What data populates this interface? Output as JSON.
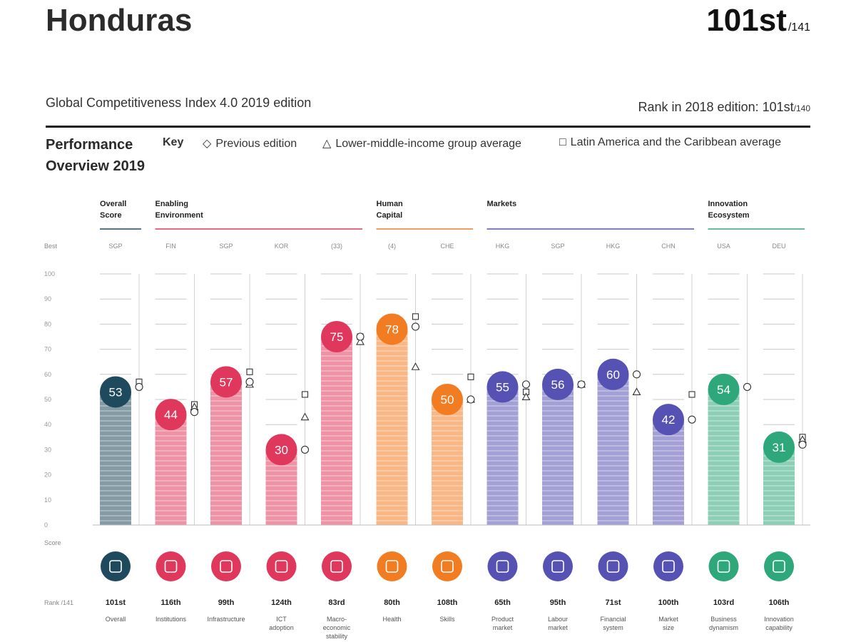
{
  "header": {
    "country": "Honduras",
    "rank": "101st",
    "rank_of": "/141",
    "edition": "Global Competitiveness Index 4.0 2019 edition",
    "rank_2018_label": "Rank in 2018 edition: 101st",
    "rank_2018_of": "/140"
  },
  "performance": {
    "title_line1": "Performance",
    "title_line2": "Overview 2019",
    "key_label": "Key",
    "key_previous": "Previous edition",
    "key_income": "Lower-middle-income group average",
    "key_region": "Latin America and the Caribbean average"
  },
  "colors": {
    "overall": "#1f4a5e",
    "enabling": "#e0385c",
    "human": "#f27c22",
    "markets": "#5652b3",
    "innovation": "#2ea87a"
  },
  "chart_data": {
    "type": "bar",
    "ylim": [
      0,
      100
    ],
    "yticks": [
      "100",
      "90",
      "80",
      "70",
      "60",
      "50",
      "40",
      "30",
      "20",
      "10",
      "0"
    ],
    "best_label": "Best",
    "score_label": "Score",
    "rank_label": "Rank /141",
    "groups": [
      {
        "name": "Overall\nScore",
        "color_key": "overall"
      },
      {
        "name": "Enabling\nEnvironment",
        "color_key": "enabling"
      },
      {
        "name": "Human\nCapital",
        "color_key": "human"
      },
      {
        "name": "Markets",
        "color_key": "markets"
      },
      {
        "name": "Innovation\nEcosystem",
        "color_key": "innovation"
      }
    ],
    "pillars": [
      {
        "label": "Overall",
        "group": 0,
        "best": "SGP",
        "score": 53,
        "rank": "101st",
        "prev": 55,
        "income": null,
        "region": 57,
        "icon": "medal-icon"
      },
      {
        "label": "Institutions",
        "group": 1,
        "best": "FIN",
        "score": 44,
        "rank": "116th",
        "prev": 45,
        "income": 47,
        "region": 48,
        "icon": "institution-icon"
      },
      {
        "label": "Infrastructure",
        "group": 1,
        "best": "SGP",
        "score": 57,
        "rank": "99th",
        "prev": 57,
        "income": 56,
        "region": 61,
        "icon": "infrastructure-icon"
      },
      {
        "label": "ICT\nadoption",
        "group": 1,
        "best": "KOR",
        "score": 30,
        "rank": "124th",
        "prev": 30,
        "income": 43,
        "region": 52,
        "icon": "chip-icon"
      },
      {
        "label": "Macro-\neconomic\nstability",
        "group": 1,
        "best": "(33)",
        "score": 75,
        "rank": "83rd",
        "prev": 75,
        "income": 73,
        "region": 75,
        "icon": "percent-icon"
      },
      {
        "label": "Health",
        "group": 2,
        "best": "(4)",
        "score": 78,
        "rank": "80th",
        "prev": 79,
        "income": 63,
        "region": 83,
        "icon": "heart-pulse-icon"
      },
      {
        "label": "Skills",
        "group": 2,
        "best": "CHE",
        "score": 50,
        "rank": "108th",
        "prev": 50,
        "income": 50,
        "region": 59,
        "icon": "graduate-icon"
      },
      {
        "label": "Product\nmarket",
        "group": 3,
        "best": "HKG",
        "score": 55,
        "rank": "65th",
        "prev": 56,
        "income": 51,
        "region": 53,
        "icon": "tag-icon"
      },
      {
        "label": "Labour\nmarket",
        "group": 3,
        "best": "SGP",
        "score": 56,
        "rank": "95th",
        "prev": 56,
        "income": 56,
        "region": 56,
        "icon": "people-icon"
      },
      {
        "label": "Financial\nsystem",
        "group": 3,
        "best": "HKG",
        "score": 60,
        "rank": "71st",
        "prev": 60,
        "income": 53,
        "region": null,
        "icon": "card-icon"
      },
      {
        "label": "Market\nsize",
        "group": 3,
        "best": "CHN",
        "score": 42,
        "rank": "100th",
        "prev": 42,
        "income": null,
        "region": 52,
        "icon": "expand-icon"
      },
      {
        "label": "Business\ndynamism",
        "group": 4,
        "best": "USA",
        "score": 54,
        "rank": "103rd",
        "prev": 55,
        "income": null,
        "region": null,
        "icon": "building-icon"
      },
      {
        "label": "Innovation\ncapability",
        "group": 4,
        "best": "DEU",
        "score": 31,
        "rank": "106th",
        "prev": 32,
        "income": 34,
        "region": 35,
        "icon": "bulb-icon"
      }
    ]
  }
}
